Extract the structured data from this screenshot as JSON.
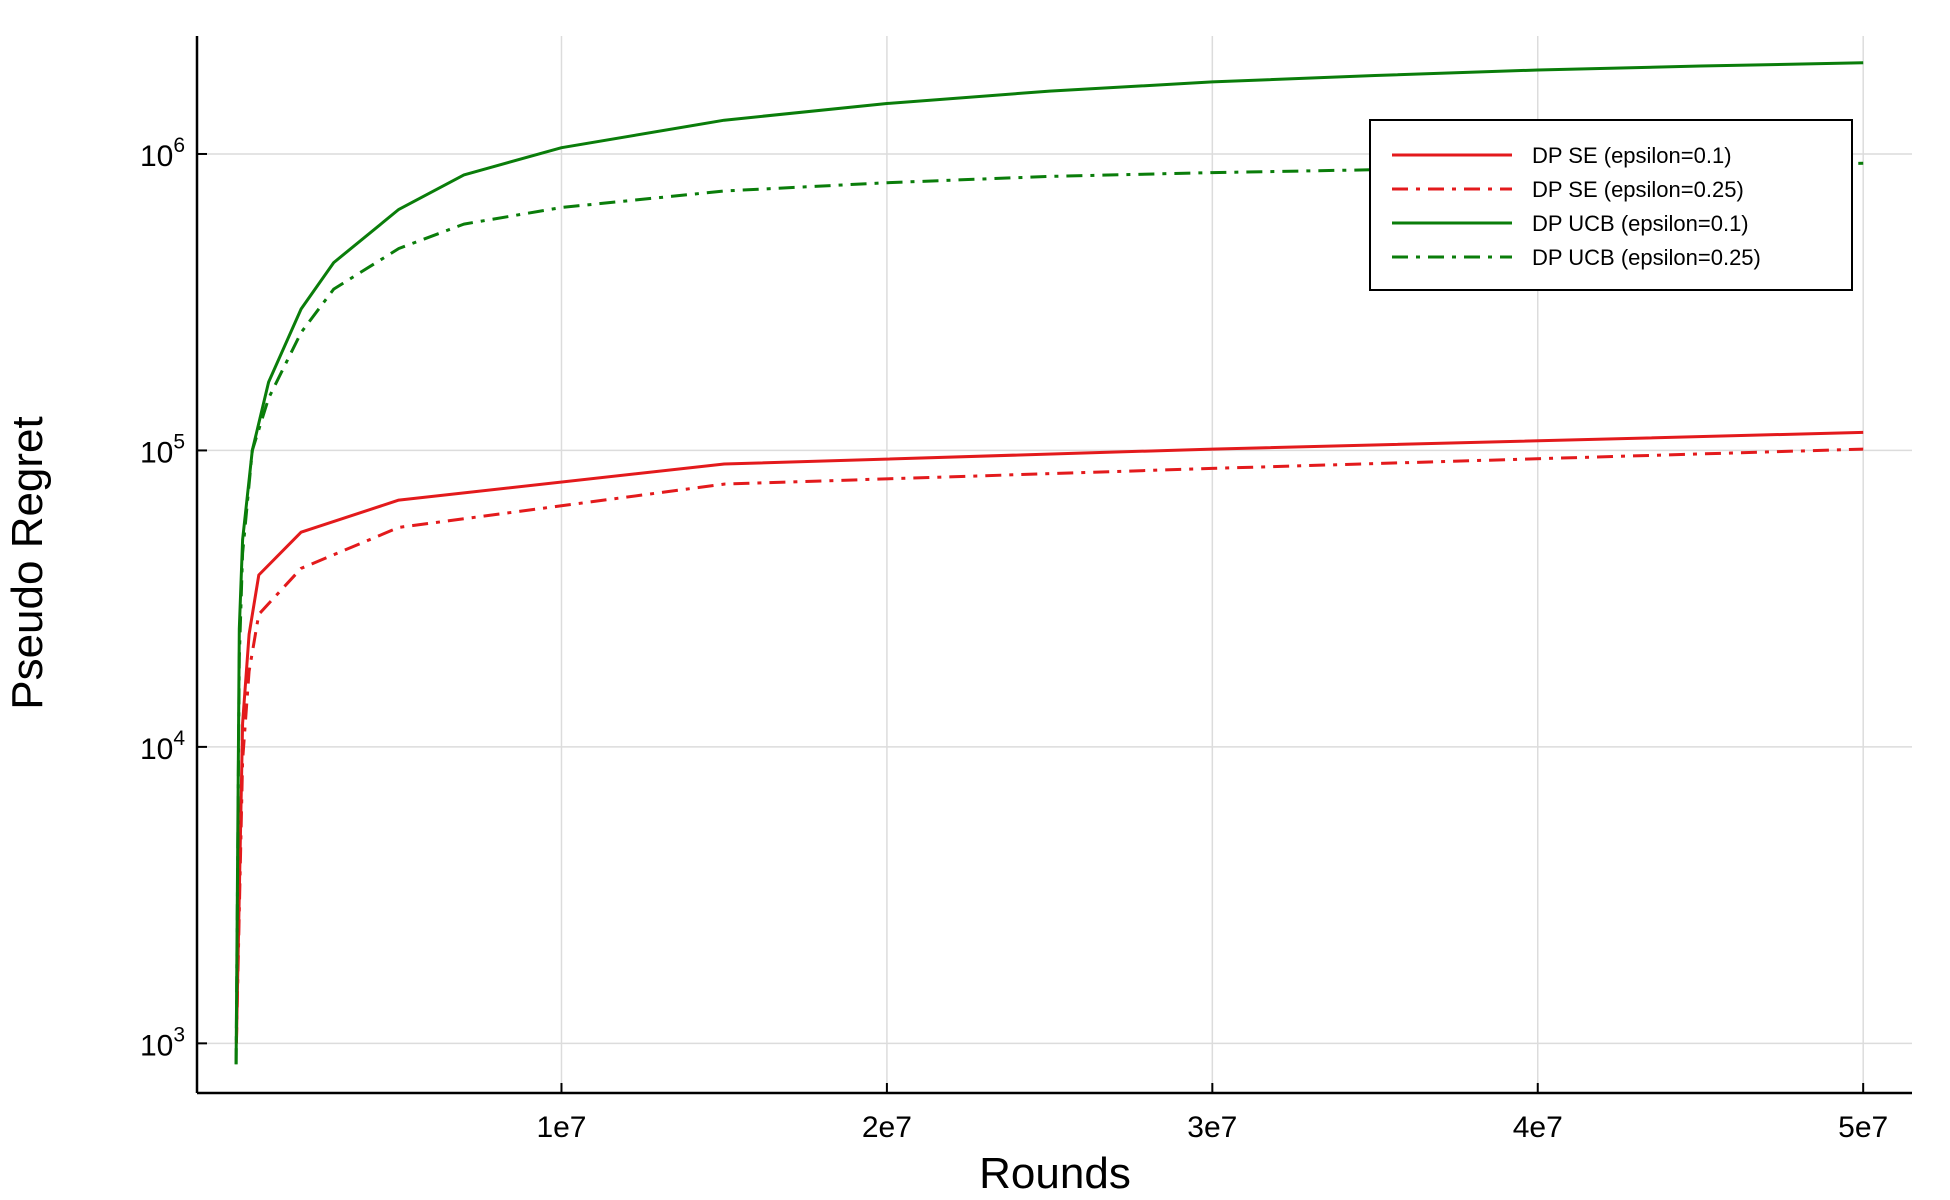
{
  "chart_data": {
    "type": "line",
    "title": "",
    "xlabel": "Rounds",
    "ylabel": "Pseudo Regret",
    "xlim": [
      -1200000,
      51500000
    ],
    "ylim": [
      680,
      2500000
    ],
    "yscale": "log",
    "grid": true,
    "legend_position": "top-right",
    "x_ticks": [
      {
        "value": 10000000,
        "label": "1e7"
      },
      {
        "value": 20000000,
        "label": "2e7"
      },
      {
        "value": 30000000,
        "label": "3e7"
      },
      {
        "value": 40000000,
        "label": "4e7"
      },
      {
        "value": 50000000,
        "label": "5e7"
      }
    ],
    "y_ticks": [
      {
        "value": 1000,
        "base": "10",
        "exp": "3"
      },
      {
        "value": 10000,
        "base": "10",
        "exp": "4"
      },
      {
        "value": 100000,
        "base": "10",
        "exp": "5"
      },
      {
        "value": 1000000,
        "base": "10",
        "exp": "6"
      }
    ],
    "series": [
      {
        "name": "DP SE (epsilon=0.1)",
        "color": "#e31a1c",
        "dash": "solid",
        "x": [
          10000,
          200000,
          400000,
          700000,
          2000000,
          5000000,
          15000000,
          30000000,
          50000000
        ],
        "y": [
          1000,
          12000,
          24000,
          38000,
          53000,
          68000,
          90000,
          101000,
          115000
        ]
      },
      {
        "name": "DP SE (epsilon=0.25)",
        "color": "#e31a1c",
        "dash": "dashdot",
        "x": [
          10000,
          200000,
          400000,
          700000,
          2000000,
          5000000,
          15000000,
          30000000,
          50000000
        ],
        "y": [
          1000,
          9000,
          18000,
          28000,
          40000,
          55000,
          77000,
          87000,
          101000
        ]
      },
      {
        "name": "DP UCB (epsilon=0.1)",
        "color": "#0a7d0a",
        "dash": "solid",
        "x": [
          0,
          100000,
          200000,
          500000,
          1000000,
          2000000,
          3000000,
          5000000,
          7000000,
          10000000,
          15000000,
          20000000,
          25000000,
          30000000,
          35000000,
          40000000,
          45000000,
          50000000
        ],
        "y": [
          850,
          25000,
          50000,
          100000,
          170000,
          300000,
          430000,
          650000,
          850000,
          1050000,
          1300000,
          1480000,
          1630000,
          1750000,
          1840000,
          1920000,
          1980000,
          2030000
        ]
      },
      {
        "name": "DP UCB (epsilon=0.25)",
        "color": "#0a7d0a",
        "dash": "dashdot",
        "x": [
          0,
          100000,
          200000,
          500000,
          1000000,
          2000000,
          3000000,
          5000000,
          7000000,
          10000000,
          15000000,
          20000000,
          25000000,
          30000000,
          35000000,
          40000000,
          45000000,
          50000000
        ],
        "y": [
          850,
          20000,
          45000,
          100000,
          150000,
          250000,
          350000,
          480000,
          580000,
          660000,
          750000,
          800000,
          840000,
          865000,
          885000,
          900000,
          915000,
          930000
        ]
      }
    ]
  }
}
